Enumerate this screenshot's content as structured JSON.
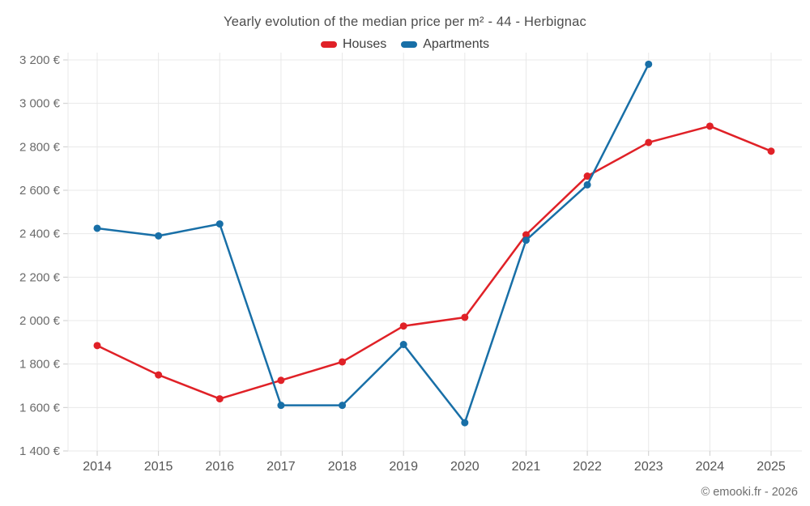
{
  "chart_data": {
    "type": "line",
    "title": "Yearly evolution of the median price per m² - 44 - Herbignac",
    "categories": [
      "2014",
      "2015",
      "2016",
      "2017",
      "2018",
      "2019",
      "2020",
      "2021",
      "2022",
      "2023",
      "2024",
      "2025"
    ],
    "series": [
      {
        "name": "Houses",
        "color": "#e02127",
        "values": [
          1885,
          1750,
          1640,
          1725,
          1810,
          1975,
          2015,
          2395,
          2665,
          2820,
          2895,
          2780
        ]
      },
      {
        "name": "Apartments",
        "color": "#186fa7",
        "values": [
          2425,
          2390,
          2445,
          1610,
          1610,
          1890,
          1530,
          2370,
          2625,
          3180,
          null,
          null
        ]
      }
    ],
    "ylim": [
      1400,
      3200
    ],
    "y_ticks": [
      1400,
      1600,
      1800,
      2000,
      2200,
      2400,
      2600,
      2800,
      3000,
      3200
    ],
    "y_tick_labels": [
      "1 400 €",
      "1 600 €",
      "1 800 €",
      "2 000 €",
      "2 200 €",
      "2 400 €",
      "2 600 €",
      "2 800 €",
      "3 000 €",
      "3 200 €"
    ],
    "xlabel": "",
    "ylabel": "",
    "grid": true,
    "legend_position": "top",
    "grid_color": "#e8e8e8",
    "axis_tick_color": "#cccccc",
    "y_label_color": "#6b6b6b",
    "x_label_color": "#555555"
  },
  "footer": {
    "credit": "© emooki.fr - 2026"
  }
}
